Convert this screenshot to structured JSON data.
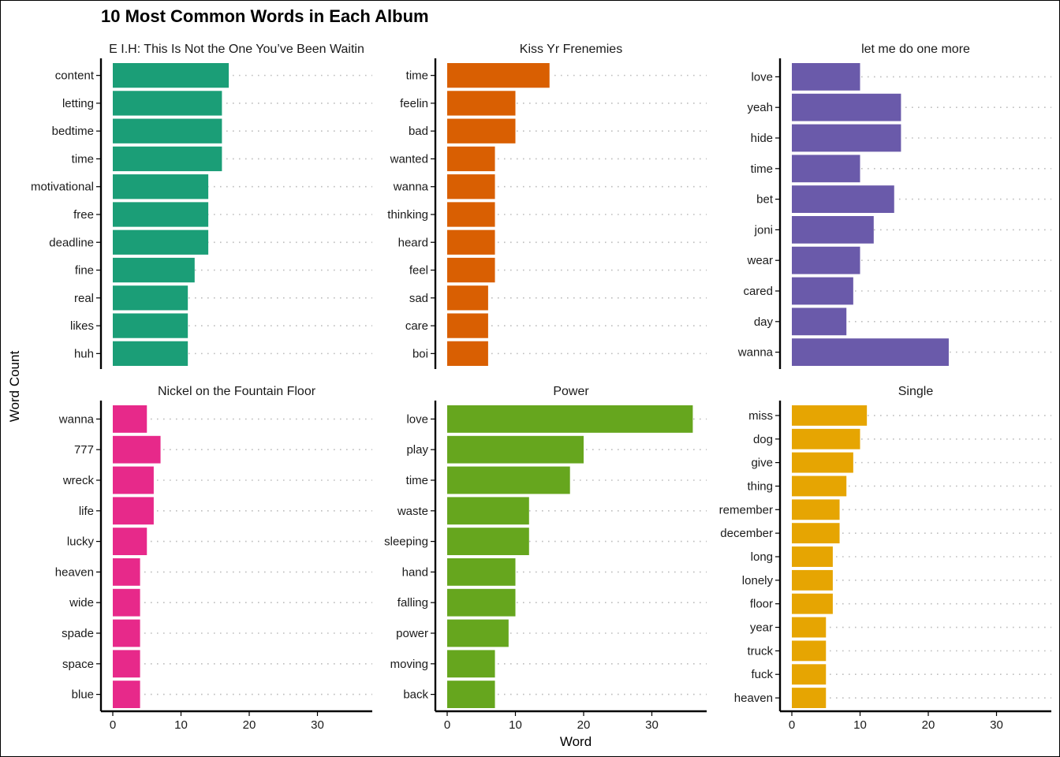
{
  "chart_data": {
    "type": "bar",
    "orientation": "horizontal",
    "title": "10 Most Common Words in Each Album",
    "xlabel": "Word",
    "ylabel": "Word Count",
    "xlim": [
      0,
      38
    ],
    "x_ticks": [
      0,
      10,
      20,
      30
    ],
    "grid": "dotted horizontal guides",
    "legend": "none",
    "panels": [
      {
        "name": "E.I.H: This Is Not the One You've Been Waiting For",
        "display_name": "E I.H: This Is Not the One You’ve Been Waitin",
        "color": "#1b9e77",
        "categories": [
          "content",
          "letting",
          "bedtime",
          "time",
          "motivational",
          "free",
          "deadline",
          "fine",
          "real",
          "likes",
          "huh"
        ],
        "values": [
          17,
          16,
          16,
          16,
          14,
          14,
          14,
          12,
          11,
          11,
          11
        ]
      },
      {
        "name": "Kiss Yr Frenemies",
        "display_name": "Kiss Yr Frenemies",
        "color": "#d95f02",
        "categories": [
          "time",
          "feelin",
          "bad",
          "wanted",
          "wanna",
          "thinking",
          "heard",
          "feel",
          "sad",
          "care",
          "boi"
        ],
        "values": [
          15,
          10,
          10,
          7,
          7,
          7,
          7,
          7,
          6,
          6,
          6
        ]
      },
      {
        "name": "let me do one more",
        "display_name": "let me do one more",
        "color": "#6a5aaa",
        "categories": [
          "love",
          "yeah",
          "hide",
          "time",
          "bet",
          "joni",
          "wear",
          "cared",
          "day",
          "wanna"
        ],
        "values": [
          10,
          16,
          16,
          10,
          15,
          12,
          10,
          9,
          8,
          23
        ]
      },
      {
        "name": "Nickel on the Fountain Floor",
        "display_name": "Nickel on the Fountain Floor",
        "color": "#e7298a",
        "categories": [
          "wanna",
          "777",
          "wreck",
          "life",
          "lucky",
          "heaven",
          "wide",
          "spade",
          "space",
          "blue"
        ],
        "values": [
          5,
          7,
          6,
          6,
          5,
          4,
          4,
          4,
          4,
          4
        ]
      },
      {
        "name": "Power",
        "display_name": "Power",
        "color": "#66a61e",
        "categories": [
          "love",
          "play",
          "time",
          "waste",
          "sleeping",
          "hand",
          "falling",
          "power",
          "moving",
          "back"
        ],
        "values": [
          36,
          20,
          18,
          12,
          12,
          10,
          10,
          9,
          7,
          7
        ]
      },
      {
        "name": "Single",
        "display_name": "Single",
        "color": "#e6a502",
        "categories": [
          "miss",
          "dog",
          "give",
          "thing",
          "remember",
          "december",
          "long",
          "lonely",
          "floor",
          "year",
          "truck",
          "fuck",
          "heaven"
        ],
        "values": [
          11,
          10,
          9,
          8,
          7,
          7,
          6,
          6,
          6,
          5,
          5,
          5,
          5
        ]
      }
    ]
  }
}
